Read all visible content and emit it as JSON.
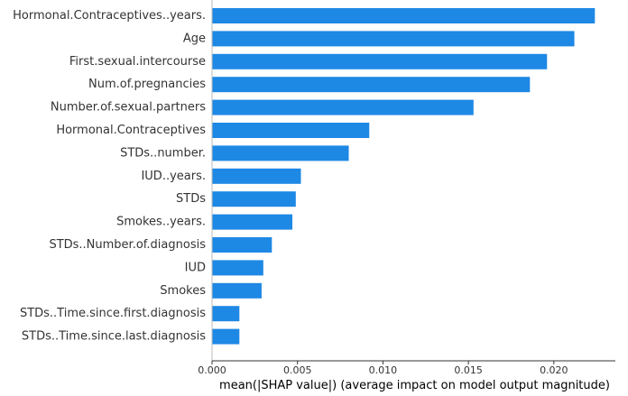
{
  "chart_data": {
    "type": "bar",
    "orientation": "horizontal",
    "categories": [
      "Hormonal.Contraceptives..years.",
      "Age",
      "First.sexual.intercourse",
      "Num.of.pregnancies",
      "Number.of.sexual.partners",
      "Hormonal.Contraceptives",
      "STDs..number.",
      "IUD..years.",
      "STDs",
      "Smokes..years.",
      "STDs..Number.of.diagnosis",
      "IUD",
      "Smokes",
      "STDs..Time.since.first.diagnosis",
      "STDs..Time.since.last.diagnosis"
    ],
    "values": [
      0.0224,
      0.0212,
      0.0196,
      0.0186,
      0.0153,
      0.0092,
      0.008,
      0.0052,
      0.0049,
      0.0047,
      0.0035,
      0.003,
      0.0029,
      0.0016,
      0.0016
    ],
    "xlabel": "mean(|SHAP value|) (average impact on model output magnitude)",
    "ylabel": "",
    "title": "",
    "xlim": [
      0,
      0.0236
    ],
    "xticks": [
      0.0,
      0.005,
      0.01,
      0.015,
      0.02
    ],
    "xtick_labels": [
      "0.000",
      "0.005",
      "0.010",
      "0.015",
      "0.020"
    ],
    "grid": false,
    "bar_color": "#1E88E5",
    "axis_color": "#333333"
  }
}
